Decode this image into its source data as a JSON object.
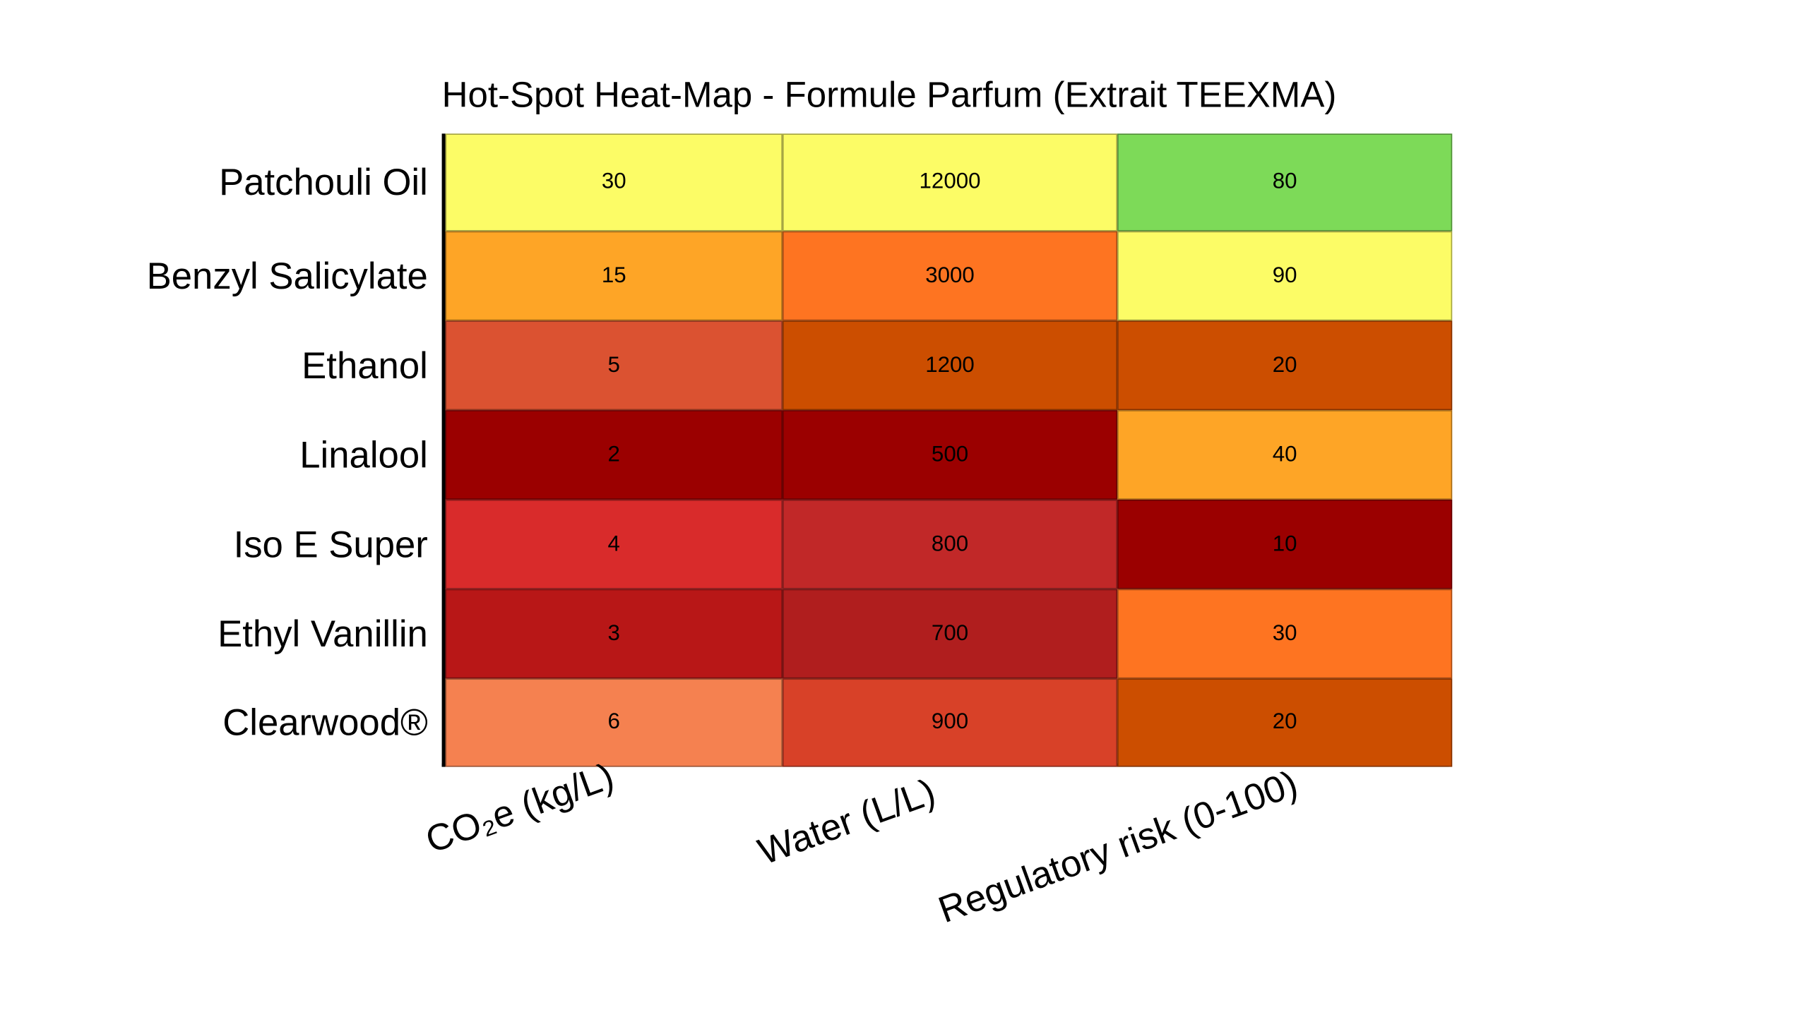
{
  "chart_data": {
    "type": "heatmap",
    "title": "Hot-Spot Heat-Map - Formule Parfum (Extrait TEEXMA)",
    "rows": [
      "Patchouli Oil",
      "Benzyl Salicylate",
      "Ethanol",
      "Linalool",
      "Iso E Super",
      "Ethyl Vanillin",
      "Clearwood®"
    ],
    "columns": [
      "CO₂e (kg/L)",
      "Water (L/L)",
      "Regulatory risk (0-100)"
    ],
    "values": [
      [
        30,
        12000,
        80
      ],
      [
        15,
        3000,
        90
      ],
      [
        5,
        1200,
        20
      ],
      [
        2,
        500,
        40
      ],
      [
        4,
        800,
        10
      ],
      [
        3,
        700,
        30
      ],
      [
        6,
        900,
        20
      ]
    ],
    "cell_colors": [
      [
        "#fcfc66",
        "#fcfc66",
        "#7dda58"
      ],
      [
        "#fea526",
        "#fe7421",
        "#fcfc66"
      ],
      [
        "#db5231",
        "#cc4e00",
        "#cc4e00"
      ],
      [
        "#9b0000",
        "#9b0000",
        "#fea526"
      ],
      [
        "#d92b2b",
        "#c12828",
        "#9b0000"
      ],
      [
        "#b81717",
        "#b01e1e",
        "#fe7421"
      ],
      [
        "#f58150",
        "#d84128",
        "#cc4e00"
      ]
    ]
  }
}
